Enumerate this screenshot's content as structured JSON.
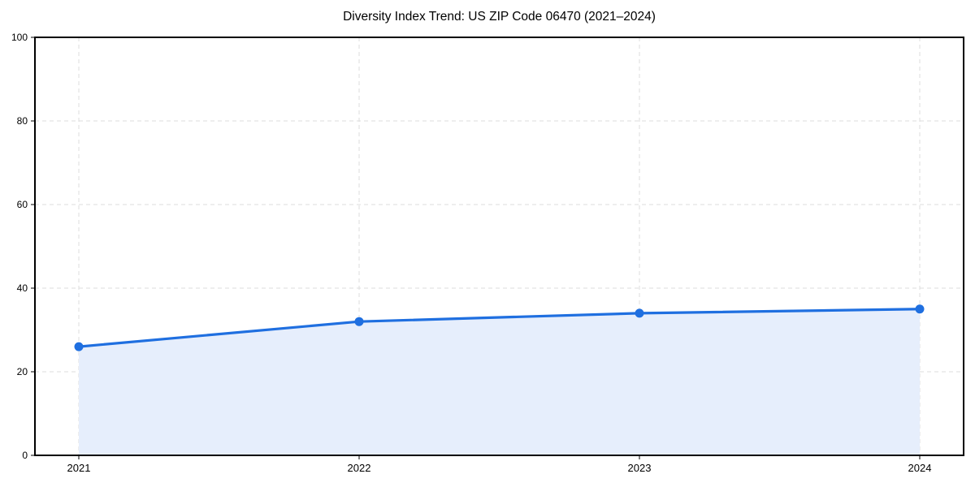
{
  "chart_data": {
    "type": "area",
    "title": "Diversity Index Trend: US ZIP Code 06470 (2021–2024)",
    "xlabel": "",
    "ylabel": "",
    "categories": [
      "2021",
      "2022",
      "2023",
      "2024"
    ],
    "values": [
      26,
      32,
      34,
      35
    ],
    "series_name": "Diversity Index",
    "ylim": [
      0,
      100
    ],
    "yticks": [
      0,
      20,
      40,
      60,
      80,
      100
    ],
    "grid": "dashed, horizontal and vertical",
    "legend": false,
    "colors": {
      "line": "#1f6fe0",
      "marker": "#1f6fe0",
      "fill": "#e6eefc",
      "grid": "#dcdcdc",
      "spine": "#000000",
      "tick_text": "#000000"
    }
  }
}
